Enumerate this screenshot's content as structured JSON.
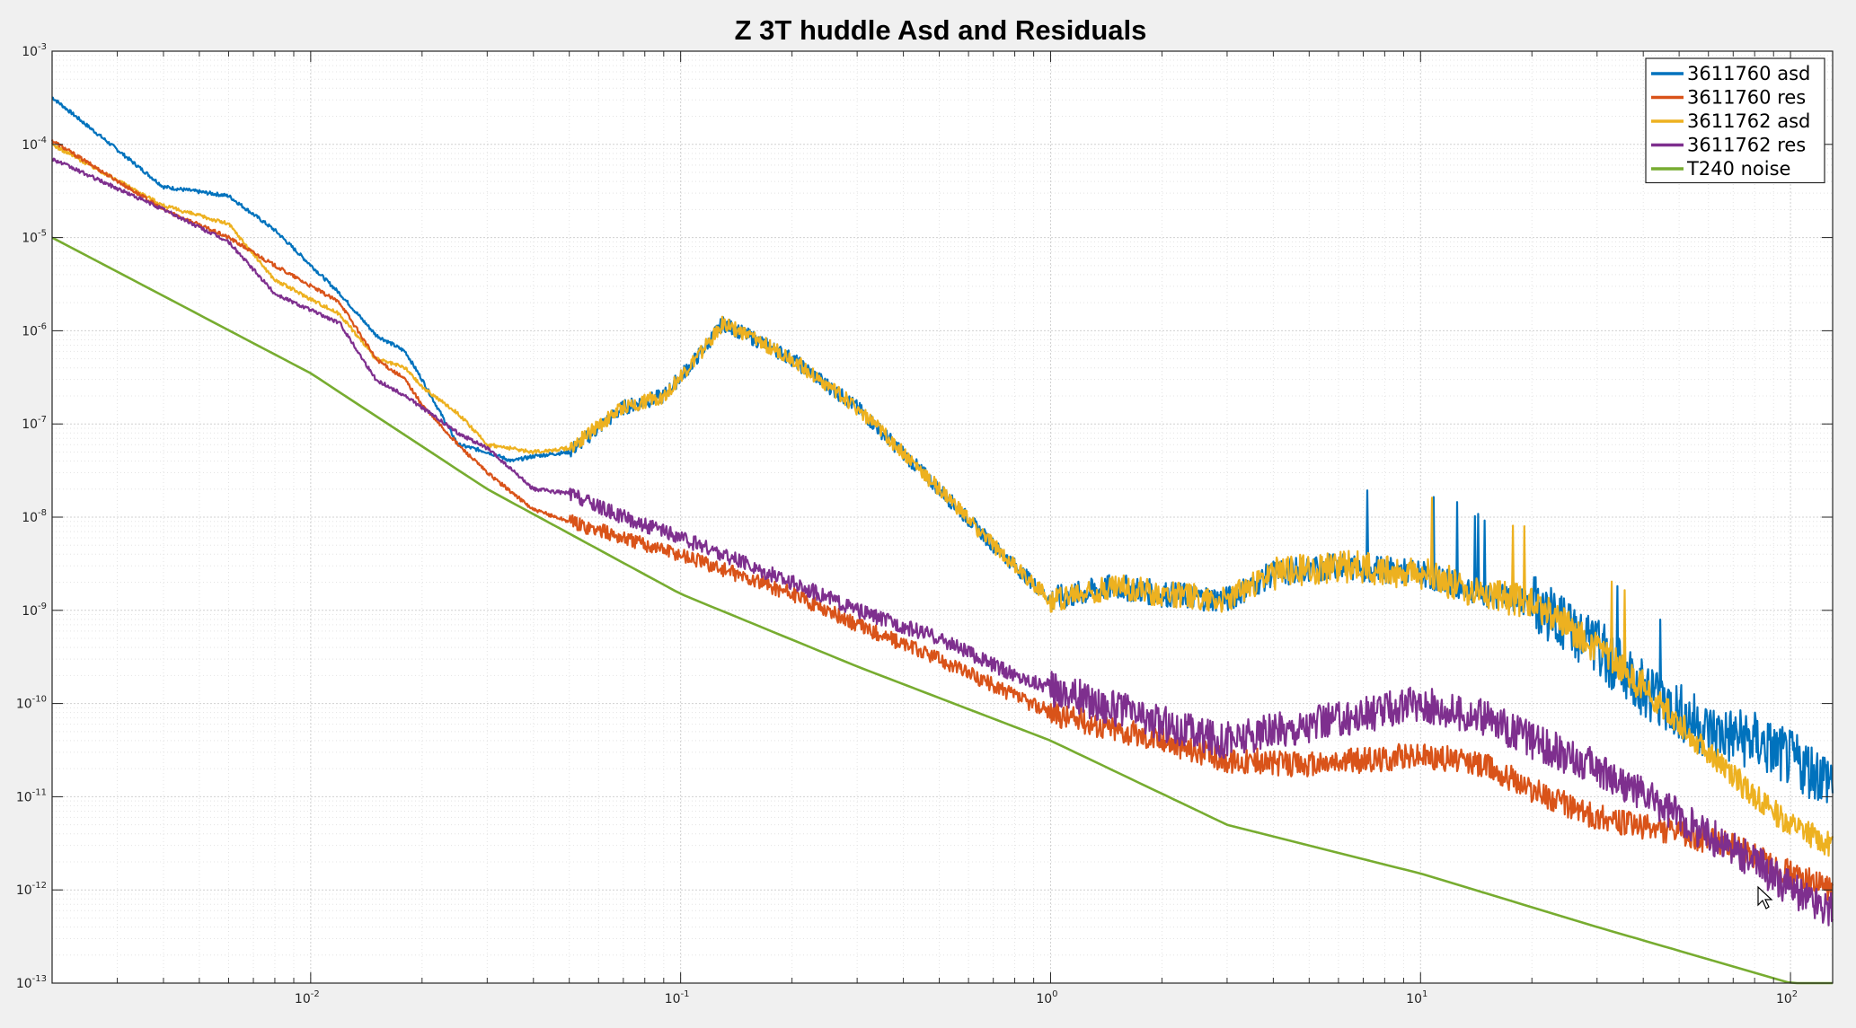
{
  "chart_data": {
    "type": "line",
    "title": "Z 3T huddle Asd and Residuals",
    "xlabel": "",
    "ylabel": "",
    "xscale": "log",
    "yscale": "log",
    "xlim": [
      0.002,
      130
    ],
    "ylim": [
      1e-13,
      0.001
    ],
    "grid": true,
    "minor_grid": true,
    "legend_position": "top-right",
    "x_ticks": [
      {
        "value": 0.01,
        "base": "10",
        "exp": "-2"
      },
      {
        "value": 0.1,
        "base": "10",
        "exp": "-1"
      },
      {
        "value": 1,
        "base": "10",
        "exp": "0"
      },
      {
        "value": 10,
        "base": "10",
        "exp": "1"
      },
      {
        "value": 100,
        "base": "10",
        "exp": "2"
      }
    ],
    "y_ticks": [
      {
        "value": 1e-13,
        "base": "10",
        "exp": "-13"
      },
      {
        "value": 1e-12,
        "base": "10",
        "exp": "-12"
      },
      {
        "value": 1e-11,
        "base": "10",
        "exp": "-11"
      },
      {
        "value": 1e-10,
        "base": "10",
        "exp": "-10"
      },
      {
        "value": 1e-09,
        "base": "10",
        "exp": "-9"
      },
      {
        "value": 1e-08,
        "base": "10",
        "exp": "-8"
      },
      {
        "value": 1e-07,
        "base": "10",
        "exp": "-7"
      },
      {
        "value": 1e-06,
        "base": "10",
        "exp": "-6"
      },
      {
        "value": 1e-05,
        "base": "10",
        "exp": "-5"
      },
      {
        "value": 0.0001,
        "base": "10",
        "exp": "-4"
      },
      {
        "value": 0.001,
        "base": "10",
        "exp": "-3"
      }
    ],
    "series": [
      {
        "name": "3611760  asd",
        "color": "#0072bd",
        "noise_pattern": "high-frequency jitter, large amplitude above 20 Hz",
        "points": [
          [
            0.002,
            0.00032
          ],
          [
            0.004,
            3.5e-05
          ],
          [
            0.006,
            2.8e-05
          ],
          [
            0.008,
            1.2e-05
          ],
          [
            0.012,
            2.5e-06
          ],
          [
            0.015,
            9e-07
          ],
          [
            0.018,
            6e-07
          ],
          [
            0.02,
            3e-07
          ],
          [
            0.025,
            6e-08
          ],
          [
            0.03,
            5e-08
          ],
          [
            0.035,
            4e-08
          ],
          [
            0.04,
            4.5e-08
          ],
          [
            0.05,
            5e-08
          ],
          [
            0.07,
            1.5e-07
          ],
          [
            0.09,
            2e-07
          ],
          [
            0.11,
            5e-07
          ],
          [
            0.13,
            1.2e-06
          ],
          [
            0.16,
            8e-07
          ],
          [
            0.2,
            5e-07
          ],
          [
            0.3,
            1.5e-07
          ],
          [
            0.5,
            2e-08
          ],
          [
            0.7,
            5e-09
          ],
          [
            1,
            1.3e-09
          ],
          [
            1.5,
            1.8e-09
          ],
          [
            2,
            1.5e-09
          ],
          [
            3,
            1.3e-09
          ],
          [
            4,
            2.5e-09
          ],
          [
            6,
            3e-09
          ],
          [
            10,
            2.5e-09
          ],
          [
            15,
            1.5e-09
          ],
          [
            20,
            1.2e-09
          ],
          [
            30,
            4e-10
          ],
          [
            40,
            1.5e-10
          ],
          [
            60,
            5e-11
          ],
          [
            80,
            4e-11
          ],
          [
            100,
            2.5e-11
          ],
          [
            130,
            1.5e-11
          ]
        ]
      },
      {
        "name": "3611760 res",
        "color": "#d95319",
        "noise_pattern": "moderate jitter across the whole band",
        "points": [
          [
            0.002,
            0.00011
          ],
          [
            0.004,
            2e-05
          ],
          [
            0.006,
            1e-05
          ],
          [
            0.008,
            5e-06
          ],
          [
            0.012,
            2e-06
          ],
          [
            0.015,
            5e-07
          ],
          [
            0.018,
            3e-07
          ],
          [
            0.02,
            1.6e-07
          ],
          [
            0.025,
            6e-08
          ],
          [
            0.03,
            3e-08
          ],
          [
            0.04,
            1.2e-08
          ],
          [
            0.05,
            9e-09
          ],
          [
            0.07,
            6e-09
          ],
          [
            0.1,
            4e-09
          ],
          [
            0.2,
            1.5e-09
          ],
          [
            0.3,
            7e-10
          ],
          [
            0.5,
            3e-10
          ],
          [
            0.8,
            1.2e-10
          ],
          [
            1,
            8e-11
          ],
          [
            2,
            4e-11
          ],
          [
            3,
            2.5e-11
          ],
          [
            5,
            2.2e-11
          ],
          [
            10,
            2.8e-11
          ],
          [
            15,
            2.2e-11
          ],
          [
            20,
            1.2e-11
          ],
          [
            30,
            6e-12
          ],
          [
            50,
            4e-12
          ],
          [
            70,
            3e-12
          ],
          [
            100,
            1.5e-12
          ],
          [
            130,
            1e-12
          ]
        ]
      },
      {
        "name": "3611762 asd",
        "color": "#edb120",
        "noise_pattern": "high-frequency jitter with tall spikes between 4 and 40 Hz",
        "points": [
          [
            0.002,
            0.0001
          ],
          [
            0.004,
            2.2e-05
          ],
          [
            0.006,
            1.4e-05
          ],
          [
            0.008,
            3.5e-06
          ],
          [
            0.012,
            1.5e-06
          ],
          [
            0.015,
            5e-07
          ],
          [
            0.018,
            4e-07
          ],
          [
            0.02,
            2.5e-07
          ],
          [
            0.025,
            1.3e-07
          ],
          [
            0.03,
            6e-08
          ],
          [
            0.04,
            5e-08
          ],
          [
            0.05,
            5.5e-08
          ],
          [
            0.07,
            1.5e-07
          ],
          [
            0.09,
            2e-07
          ],
          [
            0.11,
            5e-07
          ],
          [
            0.13,
            1.2e-06
          ],
          [
            0.16,
            8e-07
          ],
          [
            0.2,
            5e-07
          ],
          [
            0.3,
            1.5e-07
          ],
          [
            0.5,
            2e-08
          ],
          [
            0.7,
            5e-09
          ],
          [
            1,
            1.3e-09
          ],
          [
            1.5,
            1.8e-09
          ],
          [
            2,
            1.5e-09
          ],
          [
            3,
            1.3e-09
          ],
          [
            4,
            2.5e-09
          ],
          [
            6,
            3e-09
          ],
          [
            10,
            2.5e-09
          ],
          [
            15,
            1.5e-09
          ],
          [
            20,
            1.2e-09
          ],
          [
            30,
            4e-10
          ],
          [
            40,
            1.5e-10
          ],
          [
            60,
            3e-11
          ],
          [
            80,
            1e-11
          ],
          [
            100,
            5e-12
          ],
          [
            130,
            3e-12
          ]
        ]
      },
      {
        "name": "3611762 res",
        "color": "#7e2f8e",
        "noise_pattern": "dense jitter, widening band above 1 Hz",
        "points": [
          [
            0.002,
            7e-05
          ],
          [
            0.004,
            2e-05
          ],
          [
            0.006,
            9e-06
          ],
          [
            0.008,
            2.5e-06
          ],
          [
            0.012,
            1.2e-06
          ],
          [
            0.015,
            3e-07
          ],
          [
            0.018,
            2e-07
          ],
          [
            0.02,
            1.5e-07
          ],
          [
            0.025,
            8e-08
          ],
          [
            0.03,
            5.5e-08
          ],
          [
            0.04,
            2e-08
          ],
          [
            0.05,
            1.8e-08
          ],
          [
            0.07,
            1e-08
          ],
          [
            0.1,
            6e-09
          ],
          [
            0.2,
            2e-09
          ],
          [
            0.3,
            1e-09
          ],
          [
            0.5,
            5e-10
          ],
          [
            0.8,
            2e-10
          ],
          [
            1,
            1.5e-10
          ],
          [
            2,
            6e-11
          ],
          [
            3,
            4e-11
          ],
          [
            5,
            6e-11
          ],
          [
            10,
            1e-10
          ],
          [
            15,
            7e-11
          ],
          [
            20,
            4e-11
          ],
          [
            30,
            2e-11
          ],
          [
            50,
            6e-12
          ],
          [
            80,
            2e-12
          ],
          [
            100,
            1e-12
          ],
          [
            130,
            6e-13
          ]
        ]
      },
      {
        "name": "T240 noise",
        "color": "#77ac30",
        "noise_pattern": "smooth",
        "points": [
          [
            0.002,
            1e-05
          ],
          [
            0.01,
            3.5e-07
          ],
          [
            0.03,
            2e-08
          ],
          [
            0.1,
            1.5e-09
          ],
          [
            0.3,
            2.5e-10
          ],
          [
            1,
            4e-11
          ],
          [
            3,
            5e-12
          ],
          [
            10,
            1.5e-12
          ],
          [
            30,
            4e-13
          ],
          [
            100,
            1e-13
          ],
          [
            130,
            7e-14
          ]
        ]
      }
    ]
  }
}
